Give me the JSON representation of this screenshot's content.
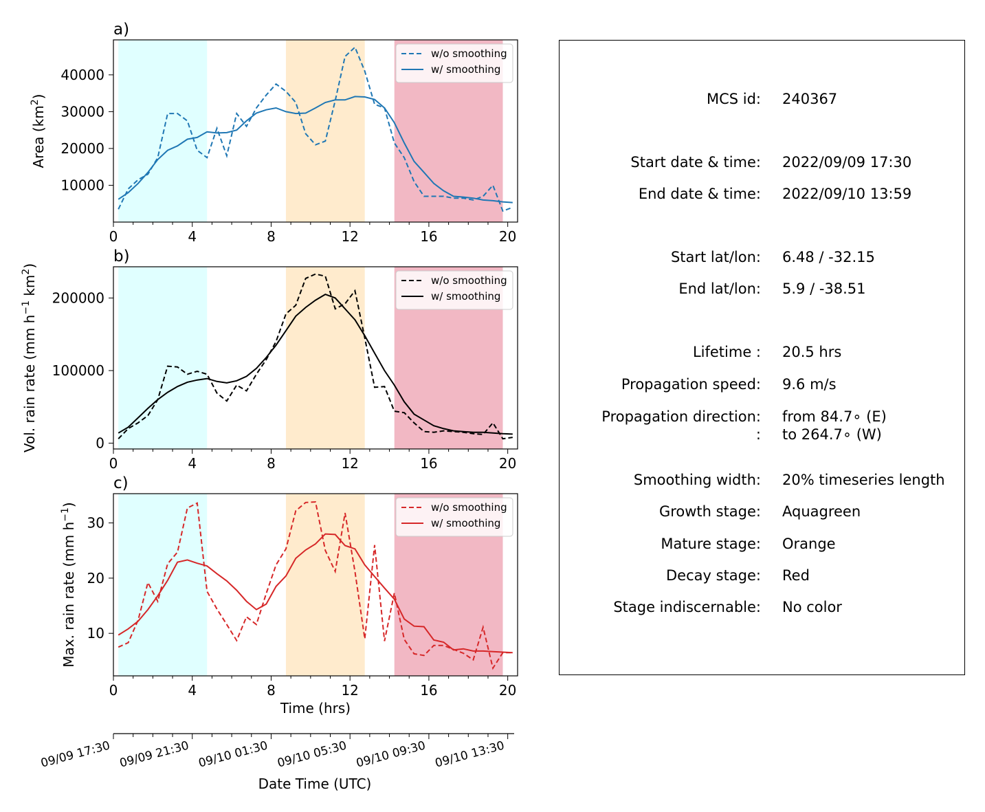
{
  "colors": {
    "growth": "#e0ffff",
    "mature": "#ffebcd",
    "decay": "#f2b8c4",
    "area": "#1f77b4",
    "volrain": "#000000",
    "maxrain": "#d62728"
  },
  "legend": {
    "raw": "w/o smoothing",
    "smooth": "w/ smoothing"
  },
  "chart_data": [
    {
      "type": "line",
      "panel_label": "a)",
      "title": "",
      "xlabel": "",
      "ylabel": "Area  (km",
      "ylabel_sup": "2",
      "ylabel_close": ")",
      "xlim": [
        0,
        20.5
      ],
      "ylim": [
        0,
        49500
      ],
      "xticks": [
        0,
        4,
        8,
        12,
        16,
        20
      ],
      "yticks": [
        10000,
        20000,
        30000,
        40000
      ],
      "legend_position": "top-right",
      "stages": {
        "growth": [
          0.25,
          4.75
        ],
        "mature": [
          8.75,
          12.75
        ],
        "decay": [
          14.25,
          19.75
        ]
      },
      "x": [
        0.25,
        0.75,
        1.25,
        1.75,
        2.25,
        2.75,
        3.25,
        3.75,
        4.25,
        4.75,
        5.25,
        5.75,
        6.25,
        6.75,
        7.25,
        7.75,
        8.25,
        8.75,
        9.25,
        9.75,
        10.25,
        10.75,
        11.25,
        11.75,
        12.25,
        12.75,
        13.25,
        13.75,
        14.25,
        14.75,
        15.25,
        15.75,
        16.25,
        16.75,
        17.25,
        17.75,
        18.25,
        18.75,
        19.25,
        19.75,
        20.25
      ],
      "series": [
        {
          "name": "w/o smoothing",
          "style": "dashed",
          "color": "#1f77b4",
          "values": [
            3500,
            9000,
            11500,
            13000,
            17500,
            29500,
            29500,
            27500,
            19500,
            17500,
            25500,
            18000,
            29500,
            26000,
            31000,
            34500,
            37500,
            35500,
            32500,
            24000,
            21000,
            22000,
            33000,
            45000,
            47500,
            41000,
            32000,
            31000,
            21500,
            17500,
            11000,
            7000,
            7000,
            7000,
            6500,
            6500,
            6000,
            7000,
            10000,
            3000,
            4000
          ]
        },
        {
          "name": "w/ smoothing",
          "style": "solid",
          "color": "#1f77b4",
          "values": [
            6200,
            8000,
            10500,
            13500,
            17000,
            19500,
            20700,
            22500,
            23000,
            24500,
            24200,
            24300,
            25000,
            27500,
            29600,
            30500,
            31000,
            30000,
            29500,
            29600,
            31000,
            32500,
            33200,
            33200,
            34100,
            34000,
            33300,
            31000,
            27000,
            21500,
            16500,
            13500,
            10500,
            8500,
            7000,
            6800,
            6500,
            6000,
            5800,
            5500,
            5300
          ]
        }
      ]
    },
    {
      "type": "line",
      "panel_label": "b)",
      "title": "",
      "xlabel": "",
      "ylabel": "Vol. rain rate (mm h",
      "ylabel_sup": "−1",
      "ylabel_mid": " km",
      "ylabel_sup2": "2",
      "ylabel_close": ")",
      "xlim": [
        0,
        20.5
      ],
      "ylim": [
        -8000,
        243000
      ],
      "xticks": [
        0,
        4,
        8,
        12,
        16,
        20
      ],
      "yticks": [
        0,
        100000,
        200000
      ],
      "legend_position": "top-right",
      "stages": {
        "growth": [
          0.25,
          4.75
        ],
        "mature": [
          8.75,
          12.75
        ],
        "decay": [
          14.25,
          19.75
        ]
      },
      "x": [
        0.25,
        0.75,
        1.25,
        1.75,
        2.25,
        2.75,
        3.25,
        3.75,
        4.25,
        4.75,
        5.25,
        5.75,
        6.25,
        6.75,
        7.25,
        7.75,
        8.25,
        8.75,
        9.25,
        9.75,
        10.25,
        10.75,
        11.25,
        11.75,
        12.25,
        12.75,
        13.25,
        13.75,
        14.25,
        14.75,
        15.25,
        15.75,
        16.25,
        16.75,
        17.25,
        17.75,
        18.25,
        18.75,
        19.25,
        19.75,
        20.25
      ],
      "series": [
        {
          "name": "w/o smoothing",
          "style": "dashed",
          "color": "#000000",
          "values": [
            6000,
            20000,
            28000,
            38000,
            60000,
            106000,
            105000,
            95000,
            99000,
            95000,
            69000,
            58000,
            80000,
            72000,
            95000,
            115000,
            140000,
            178000,
            190000,
            227000,
            233000,
            230000,
            185000,
            192000,
            210000,
            145000,
            77000,
            78000,
            44000,
            42000,
            28000,
            16000,
            15000,
            17000,
            16000,
            15000,
            13000,
            12000,
            28000,
            6000,
            8000
          ]
        },
        {
          "name": "w/ smoothing",
          "style": "solid",
          "color": "#000000",
          "values": [
            14000,
            22000,
            35000,
            48000,
            60000,
            70000,
            78000,
            84000,
            87000,
            89000,
            85000,
            83000,
            86000,
            92000,
            103000,
            118000,
            135000,
            155000,
            175000,
            187000,
            197000,
            205000,
            200000,
            185000,
            170000,
            148000,
            124000,
            100000,
            80000,
            57000,
            40000,
            32000,
            24000,
            20000,
            17000,
            16000,
            15000,
            15000,
            14000,
            13000,
            12500
          ]
        }
      ]
    },
    {
      "type": "line",
      "panel_label": "c)",
      "title": "",
      "xlabel": "Time (hrs)",
      "ylabel": "Max. rain rate  (mm h",
      "ylabel_sup": "−1",
      "ylabel_close": ")",
      "xlim": [
        0,
        20.5
      ],
      "ylim": [
        2.3,
        35.3
      ],
      "xticks": [
        0,
        4,
        8,
        12,
        16,
        20
      ],
      "yticks": [
        10,
        20,
        30
      ],
      "legend_position": "top-right",
      "stages": {
        "growth": [
          0.25,
          4.75
        ],
        "mature": [
          8.75,
          12.75
        ],
        "decay": [
          14.25,
          19.75
        ]
      },
      "x": [
        0.25,
        0.75,
        1.25,
        1.75,
        2.25,
        2.75,
        3.25,
        3.75,
        4.25,
        4.75,
        5.25,
        5.75,
        6.25,
        6.75,
        7.25,
        7.75,
        8.25,
        8.75,
        9.25,
        9.75,
        10.25,
        10.75,
        11.25,
        11.75,
        12.25,
        12.75,
        13.25,
        13.75,
        14.25,
        14.75,
        15.25,
        15.75,
        16.25,
        16.75,
        17.25,
        17.75,
        18.25,
        18.75,
        19.25,
        19.75,
        20.25
      ],
      "series": [
        {
          "name": "w/o smoothing",
          "style": "dashed",
          "color": "#d62728",
          "values": [
            7.5,
            8.3,
            12.4,
            19.2,
            15.8,
            22.6,
            24.7,
            32.7,
            33.6,
            17.6,
            14.4,
            11.6,
            8.7,
            13.0,
            11.6,
            17.2,
            22.4,
            25.3,
            32.2,
            33.7,
            33.8,
            25.0,
            21.2,
            31.8,
            21.2,
            9.0,
            26.0,
            8.6,
            17.3,
            8.9,
            6.3,
            6.0,
            7.8,
            7.8,
            7.1,
            6.4,
            5.2,
            11.1,
            3.7,
            6.5,
            6.5
          ]
        },
        {
          "name": "w/ smoothing",
          "style": "solid",
          "color": "#d62728",
          "values": [
            9.7,
            10.8,
            12.2,
            14.3,
            16.8,
            19.6,
            22.9,
            23.3,
            22.7,
            22.2,
            20.8,
            19.5,
            17.8,
            15.8,
            14.3,
            15.3,
            18.5,
            20.4,
            23.6,
            25.1,
            26.2,
            28.0,
            27.9,
            25.9,
            25.3,
            22.4,
            20.3,
            18.2,
            16.2,
            12.6,
            11.3,
            11.2,
            8.8,
            8.4,
            7.0,
            7.2,
            6.8,
            6.8,
            6.7,
            6.6,
            6.5
          ]
        }
      ]
    }
  ],
  "date_axis": {
    "label": "Date Time (UTC)",
    "ticks": [
      "09/09 17:30",
      "09/09 21:30",
      "09/10 01:30",
      "09/10 05:30",
      "09/10 09:30",
      "09/10 13:30"
    ]
  },
  "info": {
    "rows": [
      {
        "label": "MCS id:",
        "value": "240367"
      },
      {
        "label": "Start date & time:",
        "value": "2022/09/09 17:30"
      },
      {
        "label": "End date & time:",
        "value": "2022/09/10 13:59"
      },
      {
        "label": "Start lat/lon:",
        "value": "6.48 / -32.15"
      },
      {
        "label": "End lat/lon:",
        "value": "5.9 / -38.51"
      },
      {
        "label": "Lifetime :",
        "value": "20.5 hrs"
      },
      {
        "label": "Propagation speed:",
        "value": "9.6 m/s"
      },
      {
        "label": "Propagation direction:",
        "value": "from  84.7∘ (E)"
      },
      {
        "label": ":",
        "value": "to   264.7∘ (W)"
      },
      {
        "label": "Smoothing width:",
        "value": "20% timeseries length"
      },
      {
        "label": "Growth stage:",
        "value": "Aquagreen"
      },
      {
        "label": "Mature stage:",
        "value": "Orange"
      },
      {
        "label": "Decay stage:",
        "value": "Red"
      },
      {
        "label": "Stage indiscernable:",
        "value": "No color"
      }
    ]
  }
}
